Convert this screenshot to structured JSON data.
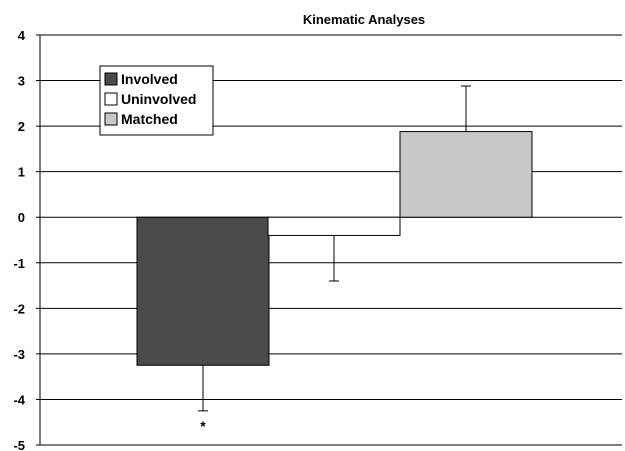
{
  "chart_data": {
    "type": "bar",
    "title": "Kinematic Analyses",
    "xlabel": "",
    "ylabel": "",
    "ylim": [
      -5,
      4
    ],
    "y_ticks": [
      "4",
      "3",
      "2",
      "1",
      "0",
      "-1",
      "-2",
      "-3",
      "-4",
      "-5"
    ],
    "grid": true,
    "legend_position": "top-left",
    "series": [
      {
        "name": "Involved",
        "value": -3.25,
        "error": 1.0,
        "color": "#4a4a4a"
      },
      {
        "name": "Uninvolved",
        "value": -0.4,
        "error": 1.0,
        "color": "#ffffff"
      },
      {
        "name": "Matched",
        "value": 1.88,
        "error": 1.0,
        "color": "#c8c8c8"
      }
    ],
    "annotations": [
      {
        "text": "*",
        "series": "Involved"
      }
    ]
  }
}
